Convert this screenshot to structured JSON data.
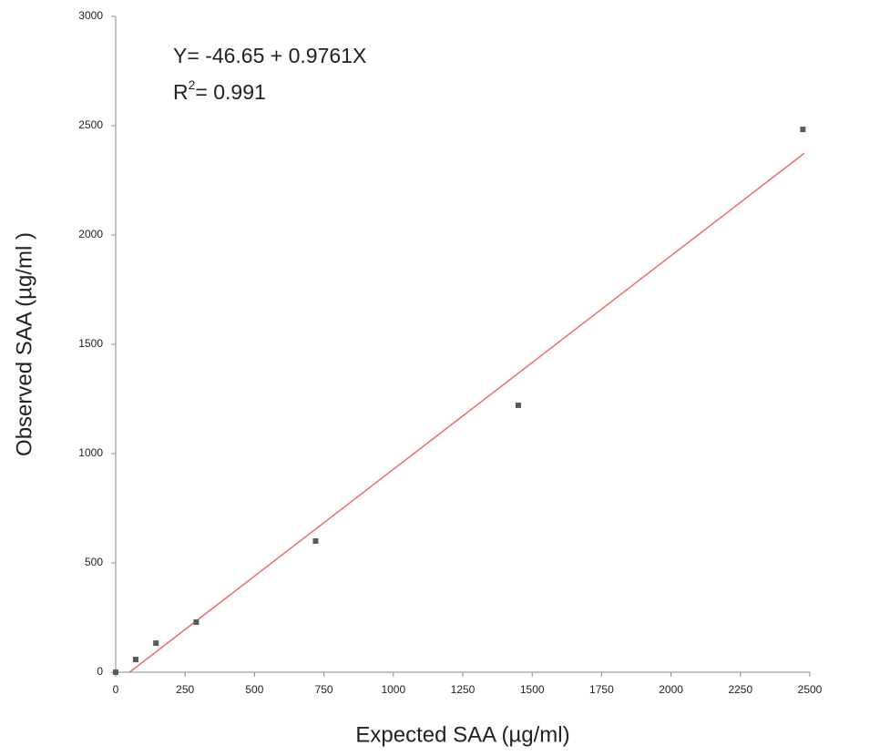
{
  "chart_data": {
    "type": "scatter",
    "x_label": "Expected SAA (µg/ml)",
    "y_label": "Observed SAA (µg/ml )",
    "equation": "Y= -46.65 + 0.9761X",
    "r2": {
      "base": "R",
      "superscript": "2",
      "text": "= 0.991"
    },
    "x": [
      0,
      72,
      145,
      290,
      720,
      1450,
      2475
    ],
    "values": [
      0,
      58,
      133,
      229,
      600,
      1221,
      2483
    ],
    "color": "#5a5a5a",
    "trendline": {
      "x": [
        50,
        2480
      ],
      "values": [
        0,
        2374
      ],
      "color": "#f26b6b"
    },
    "xlim": [
      0,
      2500
    ],
    "ylim": [
      0,
      3000
    ],
    "xticks": [
      0,
      250,
      500,
      750,
      1000,
      1250,
      1500,
      1750,
      2000,
      2250,
      2500
    ],
    "yticks": [
      0,
      500,
      1000,
      1500,
      2000,
      2500,
      3000
    ],
    "grid": false
  }
}
